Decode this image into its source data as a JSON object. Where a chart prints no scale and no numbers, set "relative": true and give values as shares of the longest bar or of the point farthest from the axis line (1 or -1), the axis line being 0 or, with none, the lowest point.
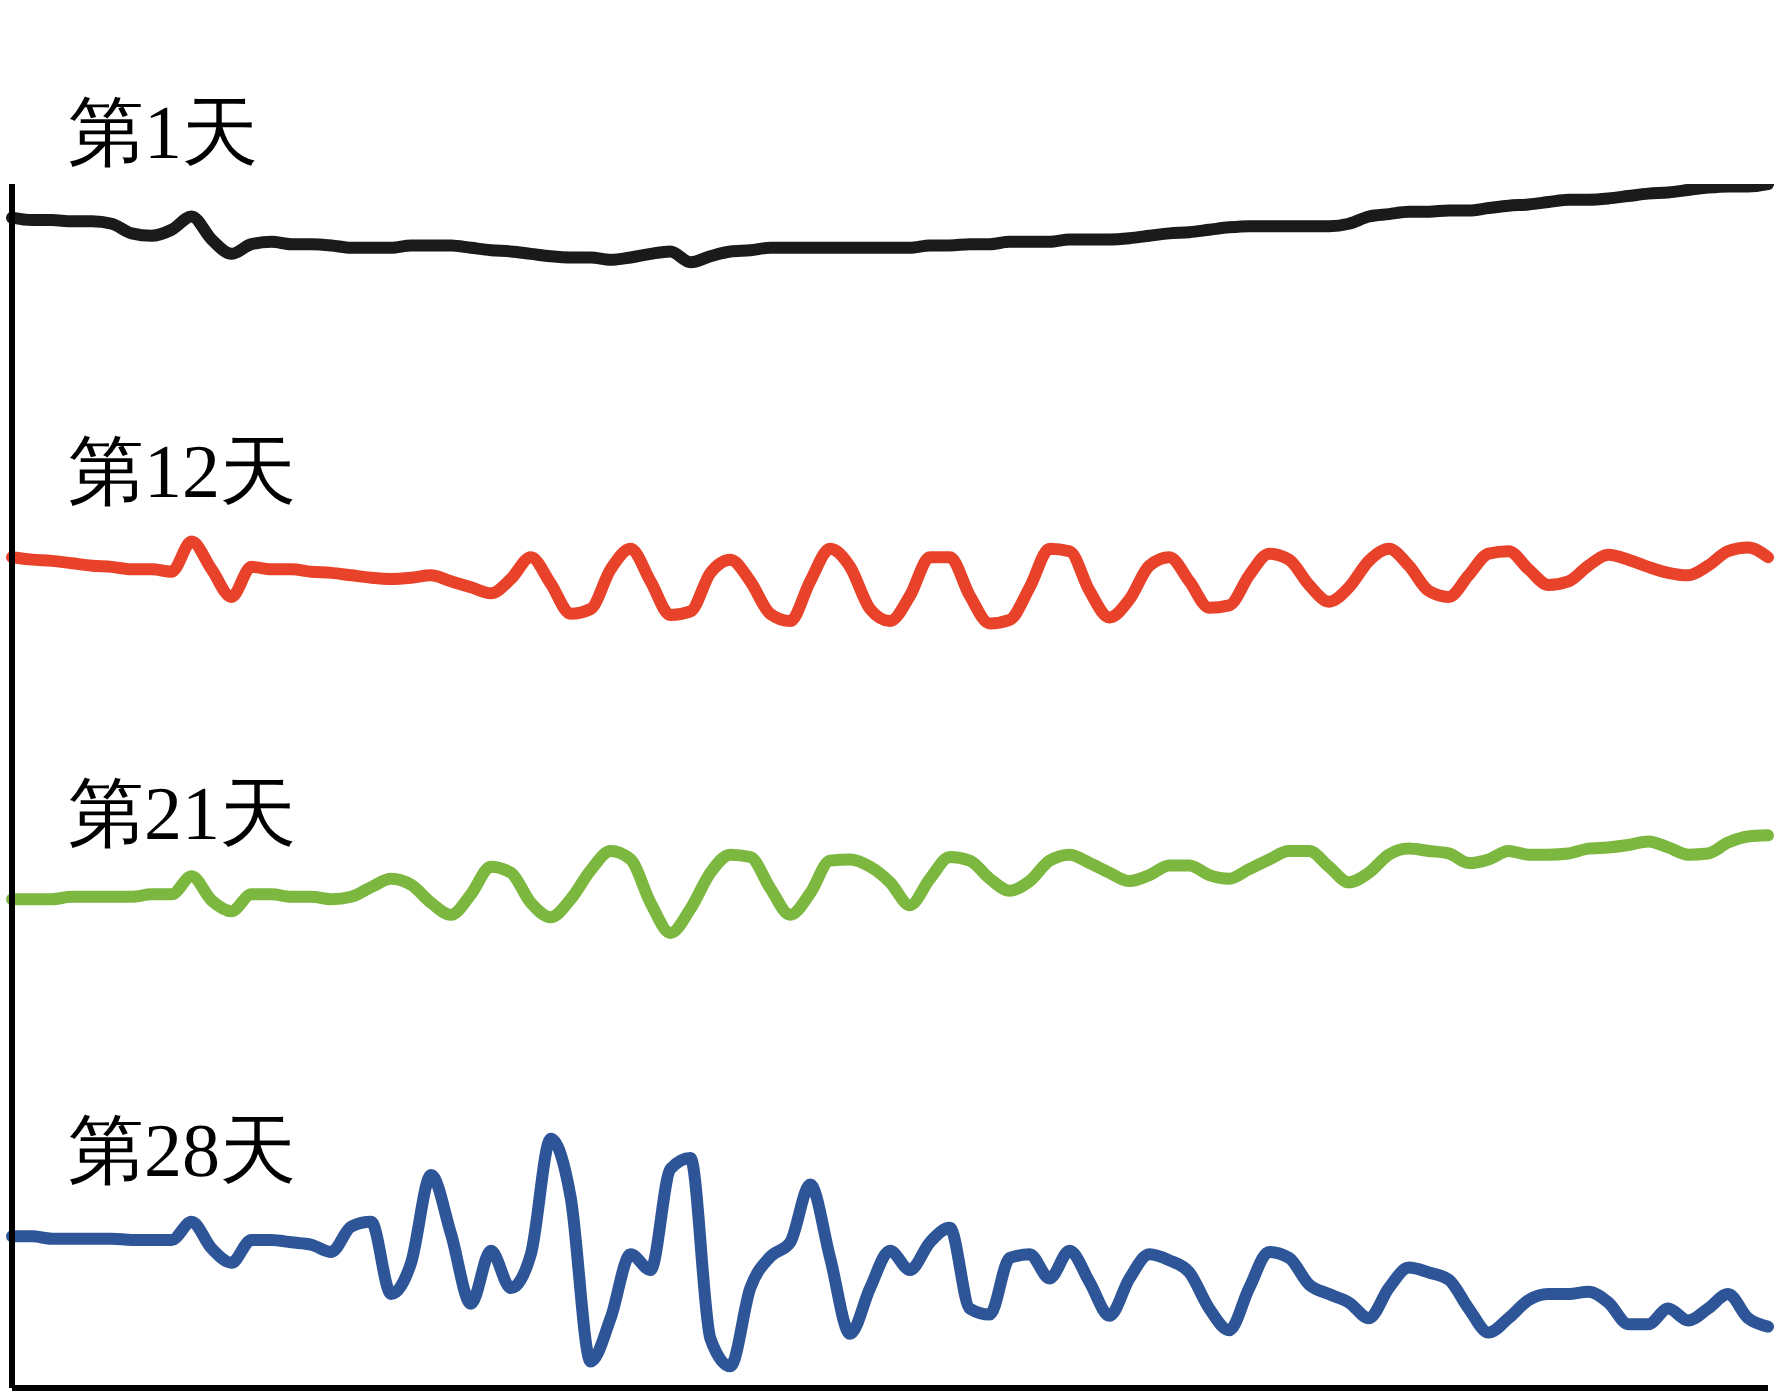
{
  "chart_data": {
    "type": "line",
    "relative": true,
    "categories": [
      null,
      null,
      null,
      null,
      null,
      null,
      null,
      null,
      null,
      null,
      null,
      null,
      null,
      null,
      null,
      null,
      null,
      null,
      null,
      null,
      null,
      null,
      null,
      null,
      null,
      null,
      null,
      null,
      null,
      null,
      null,
      null,
      null,
      null,
      null,
      null,
      null,
      null,
      null,
      null,
      null,
      null,
      null,
      null,
      null,
      null,
      null,
      null,
      null,
      null,
      null,
      null,
      null,
      null,
      null,
      null,
      null,
      null,
      null,
      null,
      null,
      null,
      null,
      null,
      null,
      null,
      null,
      null,
      null,
      null,
      null,
      null,
      null,
      null,
      null,
      null,
      null,
      null,
      null,
      null,
      null,
      null,
      null,
      null,
      null,
      null,
      null,
      null,
      null
    ],
    "series": [
      {
        "name": "第1天",
        "color": "#1a1a1a",
        "values": [
          0.972,
          0.97,
          0.97,
          0.969,
          0.969,
          0.967,
          0.959,
          0.957,
          0.962,
          0.973,
          0.954,
          0.942,
          0.95,
          0.952,
          0.95,
          0.95,
          0.949,
          0.947,
          0.947,
          0.947,
          0.949,
          0.949,
          0.949,
          0.947,
          0.945,
          0.944,
          0.942,
          0.94,
          0.939,
          0.939,
          0.937,
          0.939,
          0.942,
          0.944,
          0.935,
          0.94,
          0.944,
          0.945,
          0.947,
          0.947,
          0.947,
          0.947,
          0.947,
          0.947,
          0.947,
          0.947,
          0.949,
          0.949,
          0.95,
          0.95,
          0.952,
          0.952,
          0.952,
          0.954,
          0.954,
          0.954,
          0.955,
          0.957,
          0.959,
          0.96,
          0.962,
          0.964,
          0.965,
          0.965,
          0.965,
          0.965,
          0.965,
          0.967,
          0.973,
          0.975,
          0.977,
          0.977,
          0.978,
          0.978,
          0.98,
          0.982,
          0.983,
          0.985,
          0.987,
          0.987,
          0.988,
          0.99,
          0.992,
          0.993,
          0.995,
          0.997,
          0.998,
          0.998,
          1
        ]
      },
      {
        "name": "第12天",
        "color": "#e8432a",
        "values": [
          0.69,
          0.688,
          0.687,
          0.685,
          0.683,
          0.682,
          0.68,
          0.68,
          0.678,
          0.703,
          0.68,
          0.657,
          0.682,
          0.68,
          0.68,
          0.678,
          0.677,
          0.675,
          0.673,
          0.672,
          0.673,
          0.675,
          0.67,
          0.665,
          0.66,
          0.672,
          0.69,
          0.668,
          0.643,
          0.647,
          0.68,
          0.697,
          0.67,
          0.642,
          0.645,
          0.677,
          0.688,
          0.67,
          0.643,
          0.637,
          0.67,
          0.697,
          0.682,
          0.647,
          0.637,
          0.658,
          0.69,
          0.69,
          0.658,
          0.635,
          0.638,
          0.665,
          0.697,
          0.695,
          0.662,
          0.64,
          0.655,
          0.683,
          0.69,
          0.67,
          0.648,
          0.65,
          0.675,
          0.693,
          0.688,
          0.667,
          0.653,
          0.665,
          0.687,
          0.697,
          0.683,
          0.662,
          0.657,
          0.675,
          0.693,
          0.695,
          0.68,
          0.667,
          0.67,
          0.683,
          0.692,
          0.688,
          0.682,
          0.677,
          0.675,
          0.683,
          0.695,
          0.698,
          0.69
        ]
      },
      {
        "name": "第21天",
        "color": "#7cb73f",
        "values": [
          0.406,
          0.406,
          0.406,
          0.408,
          0.408,
          0.408,
          0.408,
          0.41,
          0.41,
          0.425,
          0.405,
          0.396,
          0.41,
          0.41,
          0.408,
          0.408,
          0.406,
          0.408,
          0.416,
          0.423,
          0.418,
          0.403,
          0.393,
          0.41,
          0.433,
          0.428,
          0.403,
          0.391,
          0.406,
          0.43,
          0.446,
          0.439,
          0.403,
          0.378,
          0.398,
          0.428,
          0.443,
          0.441,
          0.415,
          0.393,
          0.411,
          0.438,
          0.439,
          0.433,
          0.42,
          0.401,
          0.423,
          0.441,
          0.438,
          0.423,
          0.413,
          0.421,
          0.438,
          0.443,
          0.436,
          0.428,
          0.421,
          0.426,
          0.434,
          0.434,
          0.426,
          0.423,
          0.431,
          0.439,
          0.446,
          0.446,
          0.433,
          0.42,
          0.428,
          0.443,
          0.448,
          0.446,
          0.444,
          0.436,
          0.439,
          0.446,
          0.443,
          0.443,
          0.444,
          0.448,
          0.449,
          0.451,
          0.454,
          0.449,
          0.443,
          0.444,
          0.453,
          0.458,
          0.459
        ]
      },
      {
        "name": "第28天",
        "color": "#2e5597",
        "values": [
          0.126,
          0.126,
          0.124,
          0.124,
          0.124,
          0.124,
          0.123,
          0.123,
          0.123,
          0.138,
          0.116,
          0.104,
          0.123,
          0.123,
          0.121,
          0.119,
          0.113,
          0.134,
          0.138,
          0.078,
          0.104,
          0.177,
          0.128,
          0.07,
          0.114,
          0.083,
          0.111,
          0.207,
          0.158,
          0.022,
          0.058,
          0.111,
          0.098,
          0.182,
          0.191,
          0.041,
          0.018,
          0.083,
          0.109,
          0.121,
          0.169,
          0.108,
          0.045,
          0.083,
          0.114,
          0.098,
          0.121,
          0.133,
          0.066,
          0.061,
          0.108,
          0.111,
          0.091,
          0.114,
          0.088,
          0.06,
          0.091,
          0.111,
          0.106,
          0.096,
          0.066,
          0.048,
          0.083,
          0.113,
          0.108,
          0.086,
          0.078,
          0.071,
          0.058,
          0.083,
          0.1,
          0.096,
          0.09,
          0.066,
          0.046,
          0.058,
          0.073,
          0.078,
          0.078,
          0.08,
          0.071,
          0.053,
          0.053,
          0.066,
          0.056,
          0.066,
          0.078,
          0.058,
          0.051
        ]
      }
    ]
  }
}
